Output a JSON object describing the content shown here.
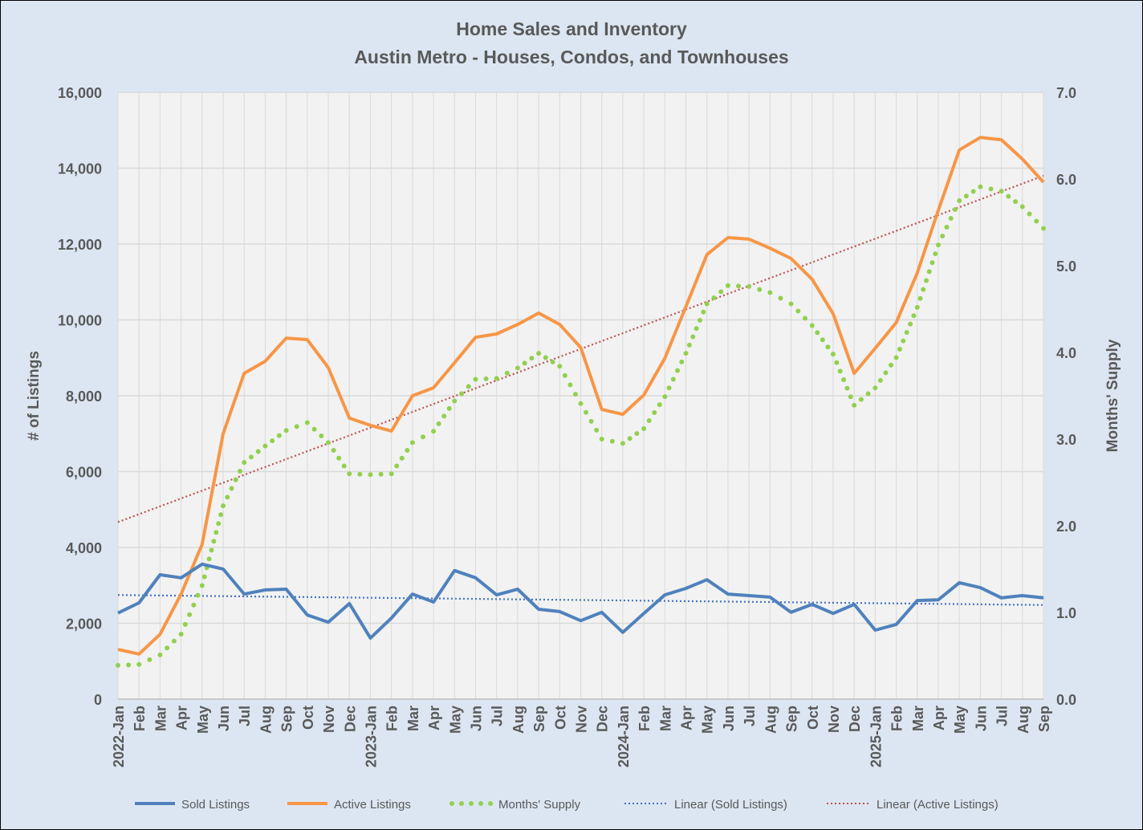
{
  "chart_data": {
    "type": "line",
    "title": "Home Sales and Inventory",
    "subtitle": "Austin Metro - Houses, Condos, and Townhouses",
    "ylabel": "# of Listings",
    "y2label": "Months' Supply",
    "ylim": [
      0,
      16000
    ],
    "y2lim": [
      0,
      7.0
    ],
    "yticks": [
      "0",
      "2,000",
      "4,000",
      "6,000",
      "8,000",
      "10,000",
      "12,000",
      "14,000",
      "16,000"
    ],
    "y2ticks": [
      "0.0",
      "1.0",
      "2.0",
      "3.0",
      "4.0",
      "5.0",
      "6.0",
      "7.0"
    ],
    "grid": true,
    "legend_position": "bottom",
    "categories": [
      "2022-Jan",
      "Feb",
      "Mar",
      "Apr",
      "May",
      "Jun",
      "Jul",
      "Aug",
      "Sep",
      "Oct",
      "Nov",
      "Dec",
      "2023-Jan",
      "Feb",
      "Mar",
      "Apr",
      "May",
      "Jun",
      "Jul",
      "Aug",
      "Sep",
      "Oct",
      "Nov",
      "Dec",
      "2024-Jan",
      "Feb",
      "Mar",
      "Apr",
      "May",
      "Jun",
      "Jul",
      "Aug",
      "Sep",
      "Oct",
      "Nov",
      "Dec",
      "2025-Jan",
      "Feb",
      "Mar",
      "Apr",
      "May",
      "Jun",
      "Jul",
      "Aug",
      "Sep"
    ],
    "series": [
      {
        "name": "Sold Listings",
        "axis": "left",
        "color": "#4F81BD",
        "style": "solid",
        "values": [
          2270,
          2540,
          3280,
          3200,
          3560,
          3430,
          2770,
          2880,
          2900,
          2220,
          2030,
          2520,
          1610,
          2140,
          2770,
          2560,
          3390,
          3200,
          2750,
          2900,
          2370,
          2310,
          2070,
          2290,
          1760,
          2260,
          2750,
          2920,
          3150,
          2770,
          2730,
          2690,
          2290,
          2500,
          2260,
          2500,
          1820,
          1970,
          2600,
          2620,
          3070,
          2940,
          2670,
          2730,
          2670
        ]
      },
      {
        "name": "Active Listings",
        "axis": "left",
        "color": "#F79646",
        "style": "solid",
        "values": [
          1310,
          1190,
          1710,
          2770,
          4080,
          7000,
          8590,
          8910,
          9520,
          9480,
          8740,
          7410,
          7220,
          7070,
          8000,
          8210,
          8870,
          9540,
          9630,
          9880,
          10180,
          9880,
          9270,
          7640,
          7510,
          8020,
          8990,
          10350,
          11720,
          12170,
          12130,
          11890,
          11620,
          11070,
          10160,
          8590,
          9250,
          9930,
          11240,
          12890,
          14480,
          14810,
          14750,
          14240,
          13630
        ]
      },
      {
        "name": "Months' Supply",
        "axis": "right",
        "color": "#92D050",
        "style": "dots",
        "values": [
          0.39,
          0.4,
          0.51,
          0.75,
          1.31,
          2.23,
          2.73,
          2.92,
          3.1,
          3.19,
          2.96,
          2.6,
          2.59,
          2.6,
          2.96,
          3.09,
          3.44,
          3.69,
          3.7,
          3.82,
          3.99,
          3.84,
          3.41,
          3.0,
          2.95,
          3.12,
          3.49,
          3.99,
          4.56,
          4.77,
          4.76,
          4.69,
          4.56,
          4.31,
          3.98,
          3.39,
          3.59,
          3.94,
          4.52,
          5.24,
          5.75,
          5.91,
          5.86,
          5.68,
          5.43
        ]
      }
    ],
    "trendlines": [
      {
        "name": "Linear (Sold Listings)",
        "of": "Sold Listings",
        "color": "#4472C4"
      },
      {
        "name": "Linear (Active Listings)",
        "of": "Active Listings",
        "color": "#C0504D"
      }
    ]
  }
}
